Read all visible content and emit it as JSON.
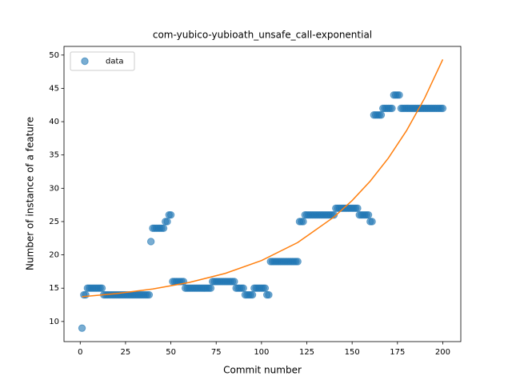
{
  "chart_data": {
    "type": "scatter",
    "title": "com-yubico-yubioath_unsafe_call-exponential",
    "x_label": "Commit number",
    "y_label": "Number of instance of a feature",
    "xlim": [
      -8.95,
      209.95
    ],
    "ylim": [
      6.98,
      51.3
    ],
    "xticks": [
      0,
      25,
      50,
      75,
      100,
      125,
      150,
      175,
      200
    ],
    "yticks": [
      10,
      15,
      20,
      25,
      30,
      35,
      40,
      45,
      50
    ],
    "grid": false,
    "legend": "upper left",
    "series": [
      {
        "name": "data",
        "type": "scatter",
        "color": "#1f77b4",
        "x": [
          1,
          2,
          3,
          4,
          5,
          6,
          7,
          8,
          9,
          10,
          11,
          12,
          13,
          14,
          15,
          16,
          17,
          18,
          19,
          20,
          21,
          22,
          23,
          24,
          25,
          26,
          27,
          28,
          29,
          30,
          31,
          32,
          33,
          34,
          35,
          36,
          37,
          38,
          39,
          40,
          41,
          42,
          43,
          44,
          45,
          46,
          47,
          48,
          49,
          50,
          51,
          52,
          53,
          54,
          55,
          56,
          57,
          58,
          59,
          60,
          61,
          62,
          63,
          64,
          65,
          66,
          67,
          68,
          69,
          70,
          71,
          72,
          73,
          74,
          75,
          76,
          77,
          78,
          79,
          80,
          81,
          82,
          83,
          84,
          85,
          86,
          87,
          88,
          89,
          90,
          91,
          92,
          93,
          94,
          95,
          96,
          97,
          98,
          99,
          100,
          101,
          102,
          103,
          104,
          105,
          106,
          107,
          108,
          109,
          110,
          111,
          112,
          113,
          114,
          115,
          116,
          117,
          118,
          119,
          120,
          121,
          122,
          123,
          124,
          125,
          126,
          127,
          128,
          129,
          130,
          131,
          132,
          133,
          134,
          135,
          136,
          137,
          138,
          139,
          140,
          141,
          142,
          143,
          144,
          145,
          146,
          147,
          148,
          149,
          150,
          151,
          152,
          153,
          154,
          155,
          156,
          157,
          158,
          159,
          160,
          161,
          162,
          163,
          164,
          165,
          166,
          167,
          168,
          169,
          170,
          171,
          172,
          173,
          174,
          175,
          176,
          177,
          178,
          179,
          180,
          181,
          182,
          183,
          184,
          185,
          186,
          187,
          188,
          189,
          190,
          191,
          192,
          193,
          194,
          195,
          196,
          197,
          198,
          199,
          200
        ],
        "values": [
          9,
          14,
          14,
          15,
          15,
          15,
          15,
          15,
          15,
          15,
          15,
          15,
          14,
          14,
          14,
          14,
          14,
          14,
          14,
          14,
          14,
          14,
          14,
          14,
          14,
          14,
          14,
          14,
          14,
          14,
          14,
          14,
          14,
          14,
          14,
          14,
          14,
          14,
          22,
          24,
          24,
          24,
          24,
          24,
          24,
          24,
          25,
          25,
          26,
          26,
          16,
          16,
          16,
          16,
          16,
          16,
          16,
          15,
          15,
          15,
          15,
          15,
          15,
          15,
          15,
          15,
          15,
          15,
          15,
          15,
          15,
          15,
          16,
          16,
          16,
          16,
          16,
          16,
          16,
          16,
          16,
          16,
          16,
          16,
          16,
          15,
          15,
          15,
          15,
          15,
          14,
          14,
          14,
          14,
          14,
          15,
          15,
          15,
          15,
          15,
          15,
          15,
          14,
          14,
          19,
          19,
          19,
          19,
          19,
          19,
          19,
          19,
          19,
          19,
          19,
          19,
          19,
          19,
          19,
          19,
          25,
          25,
          25,
          26,
          26,
          26,
          26,
          26,
          26,
          26,
          26,
          26,
          26,
          26,
          26,
          26,
          26,
          26,
          26,
          26,
          27,
          27,
          27,
          27,
          27,
          27,
          27,
          27,
          27,
          27,
          27,
          27,
          27,
          26,
          26,
          26,
          26,
          26,
          26,
          25,
          25,
          41,
          41,
          41,
          41,
          41,
          42,
          42,
          42,
          42,
          42,
          42,
          44,
          44,
          44,
          44,
          42,
          42,
          42,
          42,
          42,
          42,
          42,
          42,
          42,
          42,
          42,
          42,
          42,
          42,
          42,
          42,
          42,
          42,
          42,
          42,
          42,
          42,
          42,
          42
        ]
      },
      {
        "type": "line",
        "color": "#ff7f0e",
        "x": [
          1,
          20,
          40,
          60,
          80,
          100,
          120,
          140,
          150,
          160,
          170,
          180,
          190,
          200
        ],
        "values": [
          13.72,
          14.19,
          14.88,
          15.85,
          17.22,
          19.15,
          21.86,
          25.69,
          28.16,
          31.08,
          34.54,
          38.65,
          43.53,
          49.34
        ]
      }
    ]
  }
}
